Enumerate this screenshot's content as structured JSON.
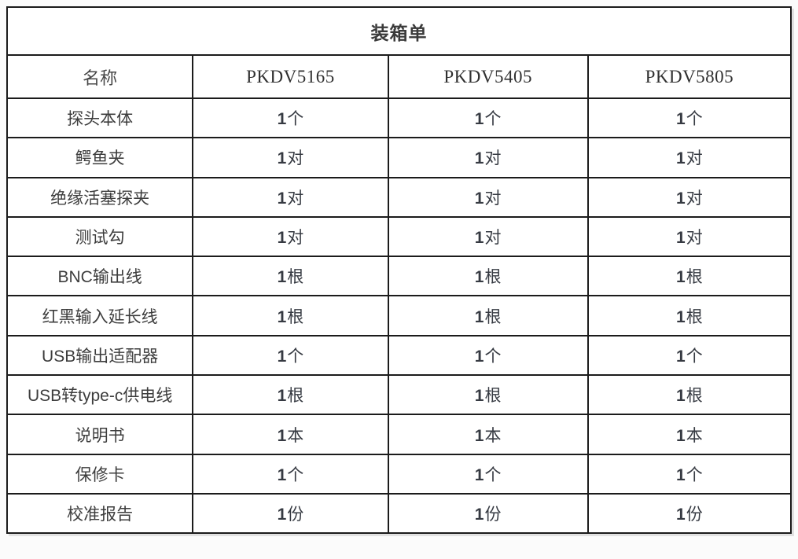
{
  "table": {
    "title": "装箱单",
    "columns": [
      "名称",
      "PKDV5165",
      "PKDV5405",
      "PKDV5805"
    ],
    "rows": [
      {
        "name": "探头本体",
        "values": [
          "1个",
          "1个",
          "1个"
        ]
      },
      {
        "name": "鳄鱼夹",
        "values": [
          "1对",
          "1对",
          "1对"
        ]
      },
      {
        "name": "绝缘活塞探夹",
        "values": [
          "1对",
          "1对",
          "1对"
        ]
      },
      {
        "name": "测试勾",
        "values": [
          "1对",
          "1对",
          "1对"
        ]
      },
      {
        "name": "BNC输出线",
        "values": [
          "1根",
          "1根",
          "1根"
        ]
      },
      {
        "name": "红黑输入延长线",
        "values": [
          "1根",
          "1根",
          "1根"
        ]
      },
      {
        "name": "USB输出适配器",
        "values": [
          "1个",
          "1个",
          "1个"
        ]
      },
      {
        "name": "USB转type-c供电线",
        "values": [
          "1根",
          "1根",
          "1根"
        ]
      },
      {
        "name": "说明书",
        "values": [
          "1本",
          "1本",
          "1本"
        ]
      },
      {
        "name": "保修卡",
        "values": [
          "1个",
          "1个",
          "1个"
        ]
      },
      {
        "name": "校准报告",
        "values": [
          "1份",
          "1份",
          "1份"
        ]
      }
    ],
    "colors": {
      "border": "#1b1b1b",
      "title_text": "#3a3a3a",
      "header_text": "#474747",
      "cell_text": "#3d3d3d",
      "background": "#ffffff"
    }
  }
}
